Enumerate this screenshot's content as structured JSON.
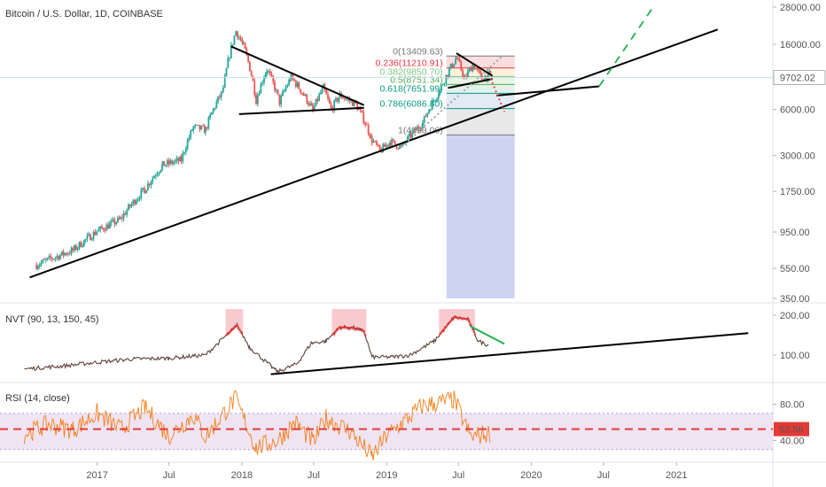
{
  "chart_data": [
    {
      "type": "candlestick",
      "title": "Bitcoin / U.S. Dollar, 1D, COINBASE",
      "y_scale": "log",
      "ylim": [
        350,
        28000
      ],
      "y_ticks": [
        "350.00",
        "550.00",
        "950.00",
        "1750.00",
        "3000.00",
        "6000.00",
        "16000.00",
        "28000.00"
      ],
      "current_price": "9702.02",
      "price_path": [
        {
          "t": "2016-08-01",
          "v": 580
        },
        {
          "t": "2016-11-01",
          "v": 720
        },
        {
          "t": "2017-01-01",
          "v": 960
        },
        {
          "t": "2017-03-01",
          "v": 1150
        },
        {
          "t": "2017-05-01",
          "v": 1800
        },
        {
          "t": "2017-06-15",
          "v": 2600
        },
        {
          "t": "2017-08-01",
          "v": 2800
        },
        {
          "t": "2017-09-01",
          "v": 4600
        },
        {
          "t": "2017-10-01",
          "v": 4400
        },
        {
          "t": "2017-11-15",
          "v": 8000
        },
        {
          "t": "2017-12-17",
          "v": 19500
        },
        {
          "t": "2018-01-05",
          "v": 15500
        },
        {
          "t": "2018-02-06",
          "v": 6900
        },
        {
          "t": "2018-03-05",
          "v": 11000
        },
        {
          "t": "2018-04-06",
          "v": 6700
        },
        {
          "t": "2018-05-05",
          "v": 9700
        },
        {
          "t": "2018-06-29",
          "v": 5900
        },
        {
          "t": "2018-07-25",
          "v": 8300
        },
        {
          "t": "2018-08-14",
          "v": 6000
        },
        {
          "t": "2018-09-05",
          "v": 7400
        },
        {
          "t": "2018-10-15",
          "v": 6500
        },
        {
          "t": "2018-11-25",
          "v": 3800
        },
        {
          "t": "2018-12-15",
          "v": 3200
        },
        {
          "t": "2019-01-10",
          "v": 3700
        },
        {
          "t": "2019-02-07",
          "v": 3400
        },
        {
          "t": "2019-04-02",
          "v": 4900
        },
        {
          "t": "2019-05-15",
          "v": 8000
        },
        {
          "t": "2019-06-26",
          "v": 13000
        },
        {
          "t": "2019-07-17",
          "v": 9500
        },
        {
          "t": "2019-08-06",
          "v": 11800
        },
        {
          "t": "2019-08-29",
          "v": 9600
        },
        {
          "t": "2019-09-20",
          "v": 10200
        }
      ],
      "fib_levels": [
        {
          "label": "0(13409.63)",
          "value": 13409.63,
          "color": "#787878"
        },
        {
          "label": "0.236(11210.91)",
          "value": 11210.91,
          "color": "#f23645"
        },
        {
          "label": "0.382(9850.70)",
          "value": 9850.7,
          "color": "#81c784"
        },
        {
          "label": "0.5(8751.34)",
          "value": 8751.34,
          "color": "#4caf50"
        },
        {
          "label": "0.618(7651.99)",
          "value": 7651.99,
          "color": "#089981"
        },
        {
          "label": "0.786(6086.80)",
          "value": 6086.8,
          "color": "#089981"
        },
        {
          "label": "1(4093.06)",
          "value": 4093.06,
          "color": "#787878"
        }
      ],
      "trendlines": [
        {
          "from": {
            "t": "2016-07-15",
            "v": 480
          },
          "to": {
            "t": "2021-04-15",
            "v": 20000
          },
          "style": "solid",
          "color": "#000000"
        },
        {
          "from": {
            "t": "2017-12-05",
            "v": 15500
          },
          "to": {
            "t": "2018-11-05",
            "v": 6400
          },
          "style": "solid",
          "color": "#000000"
        },
        {
          "from": {
            "t": "2017-12-25",
            "v": 5600
          },
          "to": {
            "t": "2018-11-05",
            "v": 6150
          },
          "style": "solid",
          "color": "#000000"
        },
        {
          "from": {
            "t": "2019-06-26",
            "v": 14000
          },
          "to": {
            "t": "2019-09-25",
            "v": 9950
          },
          "style": "solid",
          "color": "#000000"
        },
        {
          "from": {
            "t": "2019-06-05",
            "v": 8300
          },
          "to": {
            "t": "2019-09-25",
            "v": 9500
          },
          "style": "solid",
          "color": "#000000"
        },
        {
          "from": {
            "t": "2019-10-05",
            "v": 7400
          },
          "to": {
            "t": "2020-06-20",
            "v": 8500
          },
          "style": "solid",
          "color": "#000000"
        },
        {
          "from": {
            "t": "2020-06-20",
            "v": 8500
          },
          "to": {
            "t": "2020-11-01",
            "v": 27500
          },
          "style": "dashed",
          "color": "#22b14c"
        },
        {
          "from": {
            "t": "2019-09-20",
            "v": 9600
          },
          "to": {
            "t": "2019-10-25",
            "v": 5800
          },
          "style": "dotted",
          "color": "#e53935"
        },
        {
          "from": {
            "t": "2019-02-07",
            "v": 3400
          },
          "to": {
            "t": "2019-10-20",
            "v": 13409.63
          },
          "style": "dotted",
          "color": "#9e9e9e"
        }
      ]
    },
    {
      "type": "line",
      "title": "NVT (90, 13, 150, 45)",
      "ylim": [
        40,
        220
      ],
      "y_ticks": [
        "100.00",
        "200.00"
      ],
      "path": [
        {
          "t": "2016-07-01",
          "v": 65
        },
        {
          "t": "2016-10-01",
          "v": 72
        },
        {
          "t": "2017-01-01",
          "v": 82
        },
        {
          "t": "2017-04-01",
          "v": 90
        },
        {
          "t": "2017-07-01",
          "v": 92
        },
        {
          "t": "2017-10-01",
          "v": 100
        },
        {
          "t": "2017-12-20",
          "v": 175
        },
        {
          "t": "2018-01-20",
          "v": 120
        },
        {
          "t": "2018-02-25",
          "v": 88
        },
        {
          "t": "2018-04-01",
          "v": 58
        },
        {
          "t": "2018-05-20",
          "v": 78
        },
        {
          "t": "2018-06-25",
          "v": 130
        },
        {
          "t": "2018-08-01",
          "v": 135
        },
        {
          "t": "2018-09-05",
          "v": 170
        },
        {
          "t": "2018-10-10",
          "v": 168
        },
        {
          "t": "2018-11-05",
          "v": 160
        },
        {
          "t": "2018-11-25",
          "v": 95
        },
        {
          "t": "2019-01-15",
          "v": 95
        },
        {
          "t": "2019-03-01",
          "v": 100
        },
        {
          "t": "2019-05-01",
          "v": 135
        },
        {
          "t": "2019-06-20",
          "v": 195
        },
        {
          "t": "2019-07-25",
          "v": 190
        },
        {
          "t": "2019-08-20",
          "v": 135
        },
        {
          "t": "2019-09-15",
          "v": 125
        }
      ],
      "trendlines": [
        {
          "from": {
            "t": "2018-03-15",
            "v": 52
          },
          "to": {
            "t": "2021-07-01",
            "v": 155
          },
          "style": "solid",
          "color": "#000000"
        },
        {
          "from": {
            "t": "2019-08-01",
            "v": 172
          },
          "to": {
            "t": "2019-10-25",
            "v": 128
          },
          "style": "solid",
          "color": "#22b14c"
        }
      ]
    },
    {
      "type": "line",
      "title": "RSI (14, close)",
      "ylim": [
        20,
        100
      ],
      "y_ticks": [
        "40.00",
        "80.00"
      ],
      "band": [
        30,
        70
      ],
      "current_value": "52.56",
      "current_value_level": 52.56,
      "path": [
        {
          "t": "2016-07-01",
          "v": 47
        },
        {
          "t": "2016-09-01",
          "v": 58
        },
        {
          "t": "2016-11-01",
          "v": 52
        },
        {
          "t": "2017-01-01",
          "v": 70
        },
        {
          "t": "2017-03-01",
          "v": 52
        },
        {
          "t": "2017-05-01",
          "v": 76
        },
        {
          "t": "2017-07-01",
          "v": 45
        },
        {
          "t": "2017-09-01",
          "v": 68
        },
        {
          "t": "2017-10-01",
          "v": 44
        },
        {
          "t": "2017-12-15",
          "v": 86
        },
        {
          "t": "2018-02-06",
          "v": 32
        },
        {
          "t": "2018-04-01",
          "v": 40
        },
        {
          "t": "2018-05-15",
          "v": 60
        },
        {
          "t": "2018-07-01",
          "v": 38
        },
        {
          "t": "2018-08-01",
          "v": 65
        },
        {
          "t": "2018-10-01",
          "v": 50
        },
        {
          "t": "2018-11-25",
          "v": 22
        },
        {
          "t": "2019-01-01",
          "v": 45
        },
        {
          "t": "2019-04-01",
          "v": 78
        },
        {
          "t": "2019-06-20",
          "v": 85
        },
        {
          "t": "2019-08-01",
          "v": 44
        },
        {
          "t": "2019-09-20",
          "v": 48
        }
      ]
    }
  ],
  "time_axis": {
    "start": "2016-05-01",
    "end": "2021-09-01",
    "labels": [
      {
        "t": "2017-01-01",
        "label": "2017"
      },
      {
        "t": "2017-07-01",
        "label": "Jul"
      },
      {
        "t": "2018-01-01",
        "label": "2018"
      },
      {
        "t": "2018-07-01",
        "label": "Jul"
      },
      {
        "t": "2019-01-01",
        "label": "2019"
      },
      {
        "t": "2019-07-01",
        "label": "Jul"
      },
      {
        "t": "2020-01-01",
        "label": "2020"
      },
      {
        "t": "2020-07-01",
        "label": "Jul"
      },
      {
        "t": "2021-01-01",
        "label": "2021"
      }
    ]
  },
  "fib_zone": {
    "start": "2019-06-01",
    "end": "2019-11-20"
  },
  "colors": {
    "bull": "#26a69a",
    "bear": "#ef5350",
    "price_label_bg": "#ffffff",
    "crosshair": "#c5e1ea",
    "nvt_line": "#e53935",
    "rsi_line": "#f57f17",
    "rsi_band": "#e8d8f0",
    "rsi_current": "#e53935"
  }
}
